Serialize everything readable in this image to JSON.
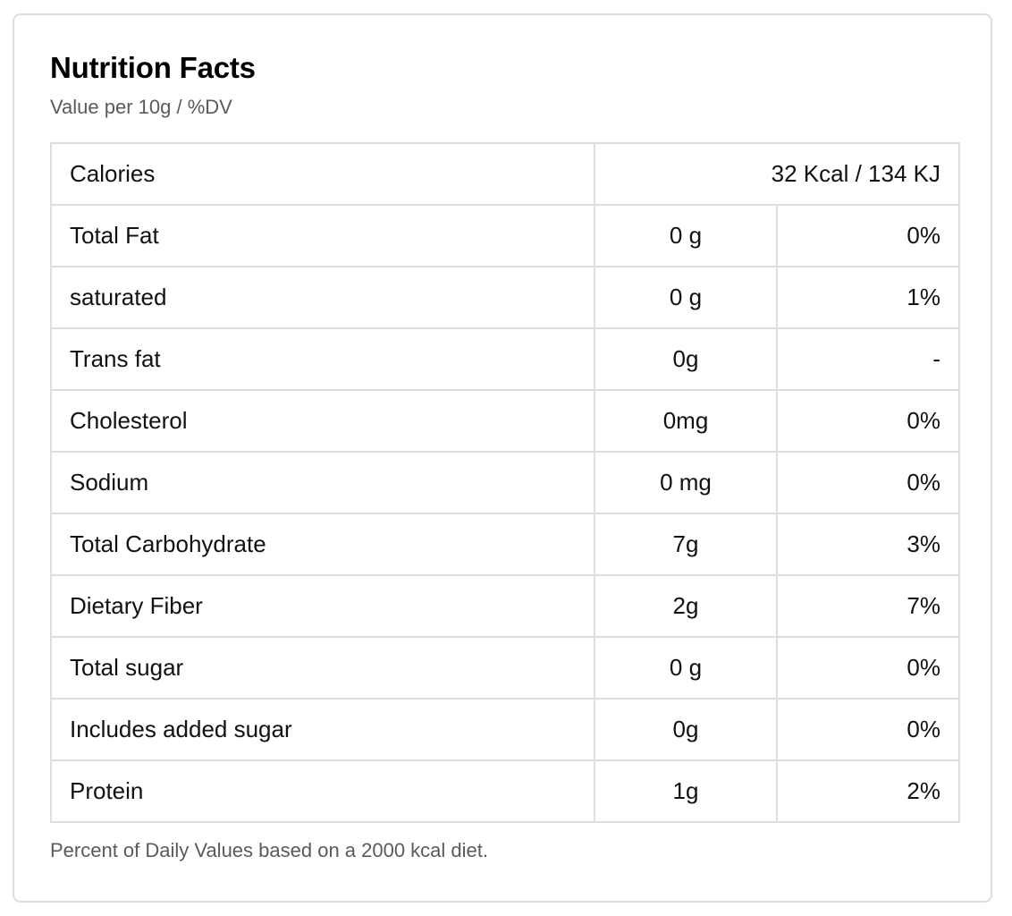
{
  "card": {
    "title": "Nutrition Facts",
    "subtitle": "Value per 10g / %DV",
    "footnote": "Percent of Daily Values based on a 2000 kcal diet."
  },
  "calories": {
    "label": "Calories",
    "value": "32 Kcal / 134 KJ"
  },
  "rows": [
    {
      "name": "Total Fat",
      "amount": "0 g",
      "dv": "0%"
    },
    {
      "name": "saturated",
      "amount": "0 g",
      "dv": "1%"
    },
    {
      "name": "Trans fat",
      "amount": "0g",
      "dv": "-"
    },
    {
      "name": "Cholesterol",
      "amount": "0mg",
      "dv": "0%"
    },
    {
      "name": "Sodium",
      "amount": "0 mg",
      "dv": "0%"
    },
    {
      "name": "Total Carbohydrate",
      "amount": "7g",
      "dv": "3%"
    },
    {
      "name": "Dietary Fiber",
      "amount": "2g",
      "dv": "7%"
    },
    {
      "name": "Total sugar",
      "amount": "0 g",
      "dv": "0%"
    },
    {
      "name": "Includes added sugar",
      "amount": "0g",
      "dv": "0%"
    },
    {
      "name": "Protein",
      "amount": "1g",
      "dv": "2%"
    }
  ]
}
